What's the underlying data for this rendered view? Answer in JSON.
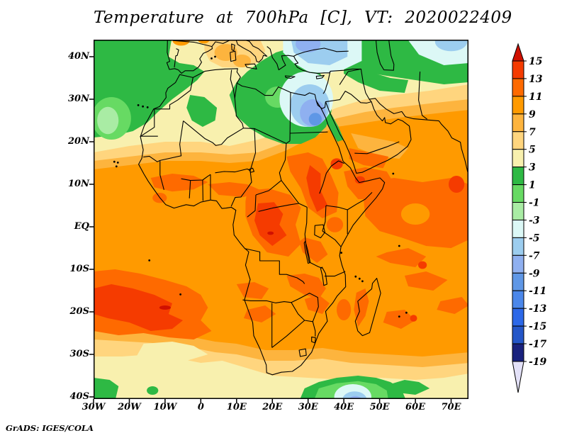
{
  "title": "Temperature at 700hPa [C], VT: 2020022409",
  "credit": "GrADS: IGES/COLA",
  "axes": {
    "lat": {
      "labels": [
        "40N",
        "30N",
        "20N",
        "10N",
        "EQ",
        "10S",
        "20S",
        "30S",
        "40S"
      ],
      "values": [
        40,
        30,
        20,
        10,
        0,
        -10,
        -20,
        -30,
        -40
      ]
    },
    "lon": {
      "labels": [
        "30W",
        "20W",
        "10W",
        "0",
        "10E",
        "20E",
        "30E",
        "40E",
        "50E",
        "60E",
        "70E"
      ],
      "values": [
        -30,
        -20,
        -10,
        0,
        10,
        20,
        30,
        40,
        50,
        60,
        70
      ]
    }
  },
  "colorbar": {
    "levels": [
      15,
      13,
      11,
      9,
      7,
      5,
      3,
      1,
      -1,
      -3,
      -5,
      -7,
      -9,
      -11,
      -13,
      -15,
      -17,
      -19
    ],
    "labels": [
      "15",
      "13",
      "11",
      "9",
      "7",
      "5",
      "3",
      "1",
      "-1",
      "-3",
      "-5",
      "-7",
      "-9",
      "-11",
      "-13",
      "-15",
      "-17",
      "-19"
    ],
    "colors": [
      "#d01000",
      "#f53b00",
      "#fe6a00",
      "#ff9a00",
      "#fdb43e",
      "#ffd57e",
      "#f8f0ae",
      "#2eb944",
      "#67da63",
      "#a9eca4",
      "#dcf8f6",
      "#9ccdef",
      "#8fb0f0",
      "#5f97e6",
      "#4b87ea",
      "#2c68e8",
      "#2456c8",
      "#19227e",
      "#e3e1f8"
    ]
  },
  "chart_data": {
    "type": "heatmap",
    "title": "Temperature at 700hPa [C], VT: 2020022409",
    "units": "C",
    "xlabel": "longitude",
    "ylabel": "latitude",
    "lon_range": [
      -30,
      75
    ],
    "lat_range": [
      -40.5,
      44
    ],
    "x_ticks": [
      "30W",
      "20W",
      "10W",
      "0",
      "10E",
      "20E",
      "30E",
      "40E",
      "50E",
      "60E",
      "70E"
    ],
    "y_ticks": [
      "40N",
      "30N",
      "20N",
      "10N",
      "EQ",
      "10S",
      "20S",
      "30S",
      "40S"
    ],
    "levels": [
      15,
      13,
      11,
      9,
      7,
      5,
      3,
      1,
      -1,
      -3,
      -5,
      -7,
      -9,
      -11,
      -13,
      -15,
      -17,
      -19
    ],
    "palette": [
      "#d01000",
      "#f53b00",
      "#fe6a00",
      "#ff9a00",
      "#fdb43e",
      "#ffd57e",
      "#f8f0ae",
      "#2eb944",
      "#67da63",
      "#a9eca4",
      "#dcf8f6",
      "#9ccdef",
      "#8fb0f0",
      "#5f97e6",
      "#4b87ea",
      "#2c68e8",
      "#2456c8",
      "#19227e",
      "#e3e1f8"
    ],
    "grid_lon": [
      -30,
      -15,
      0,
      15,
      30,
      45,
      60,
      75
    ],
    "grid_lat": [
      40,
      30,
      20,
      10,
      0,
      -10,
      -20,
      -30,
      -40
    ],
    "values_estimated": [
      [
        2,
        2,
        6,
        5,
        -3,
        1,
        -2,
        -5
      ],
      [
        1,
        3,
        4,
        4,
        -8,
        4,
        6,
        7
      ],
      [
        2,
        4,
        6,
        7,
        9,
        11,
        10,
        9
      ],
      [
        8,
        10,
        10,
        10,
        13,
        11,
        12,
        12
      ],
      [
        10,
        10,
        10,
        12,
        11,
        10,
        11,
        12
      ],
      [
        11,
        12,
        11,
        10,
        10,
        11,
        12,
        11
      ],
      [
        13,
        14,
        12,
        10,
        11,
        12,
        11,
        12
      ],
      [
        8,
        9,
        8,
        7,
        8,
        9,
        8,
        9
      ],
      [
        4,
        3,
        4,
        4,
        2,
        -6,
        3,
        6
      ]
    ],
    "legend_position": "right",
    "grid": false
  }
}
